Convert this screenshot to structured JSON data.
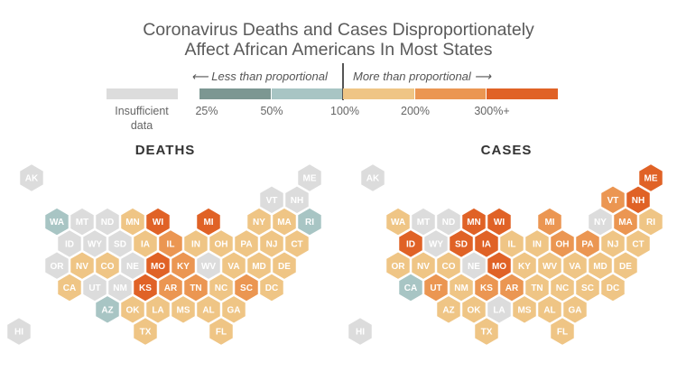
{
  "title_line1": "Coronavirus Deaths and Cases Disproportionately",
  "title_line2": "Affect African Americans In Most States",
  "legend": {
    "less_label": "⟵ Less than proportional",
    "more_label": "More than proportional ⟶",
    "insufficient_line1": "Insufficient",
    "insufficient_line2": "data",
    "ticks": [
      "25%",
      "50%",
      "100%",
      "200%",
      "300%+"
    ],
    "categories": [
      {
        "key": "na",
        "label": "Insufficient data",
        "color": "#dcdcdc"
      },
      {
        "key": "25-50",
        "color": "#7c9792"
      },
      {
        "key": "50-100",
        "color": "#a8c5c4"
      },
      {
        "key": "100-200",
        "color": "#efc585"
      },
      {
        "key": "200-300",
        "color": "#eb9652"
      },
      {
        "key": "300+",
        "color": "#e06226"
      }
    ]
  },
  "chart_data": [
    {
      "type": "hex-tile-map",
      "title": "DEATHS",
      "states": {
        "AK": "na",
        "ME": "na",
        "VT": "na",
        "NH": "na",
        "WA": "50-100",
        "MT": "na",
        "ND": "na",
        "MN": "100-200",
        "WI": "300+",
        "MI": "300+",
        "NY": "100-200",
        "MA": "100-200",
        "RI": "50-100",
        "ID": "na",
        "WY": "na",
        "SD": "na",
        "IA": "100-200",
        "IL": "200-300",
        "IN": "100-200",
        "OH": "100-200",
        "PA": "100-200",
        "NJ": "100-200",
        "CT": "100-200",
        "OR": "na",
        "NV": "100-200",
        "CO": "100-200",
        "NE": "na",
        "MO": "300+",
        "KY": "200-300",
        "WV": "na",
        "VA": "100-200",
        "MD": "100-200",
        "DE": "100-200",
        "CA": "100-200",
        "UT": "na",
        "NM": "na",
        "KS": "300+",
        "AR": "200-300",
        "TN": "200-300",
        "NC": "100-200",
        "SC": "200-300",
        "DC": "100-200",
        "AZ": "50-100",
        "OK": "100-200",
        "LA": "100-200",
        "MS": "100-200",
        "AL": "100-200",
        "GA": "100-200",
        "TX": "100-200",
        "FL": "100-200",
        "HI": "na"
      }
    },
    {
      "type": "hex-tile-map",
      "title": "CASES",
      "states": {
        "AK": "na",
        "ME": "300+",
        "VT": "200-300",
        "NH": "300+",
        "WA": "100-200",
        "MT": "na",
        "ND": "na",
        "MN": "300+",
        "WI": "300+",
        "MI": "200-300",
        "NY": "na",
        "MA": "200-300",
        "RI": "100-200",
        "ID": "300+",
        "WY": "na",
        "SD": "300+",
        "IA": "300+",
        "IL": "100-200",
        "IN": "100-200",
        "OH": "200-300",
        "PA": "200-300",
        "NJ": "100-200",
        "CT": "100-200",
        "OR": "100-200",
        "NV": "100-200",
        "CO": "100-200",
        "NE": "na",
        "MO": "300+",
        "KY": "100-200",
        "WV": "100-200",
        "VA": "100-200",
        "MD": "100-200",
        "DE": "100-200",
        "CA": "50-100",
        "UT": "200-300",
        "NM": "100-200",
        "KS": "200-300",
        "AR": "200-300",
        "TN": "100-200",
        "NC": "100-200",
        "SC": "100-200",
        "DC": "100-200",
        "AZ": "100-200",
        "OK": "100-200",
        "LA": "na",
        "MS": "100-200",
        "AL": "100-200",
        "GA": "100-200",
        "TX": "100-200",
        "FL": "100-200",
        "HI": "na"
      }
    }
  ]
}
